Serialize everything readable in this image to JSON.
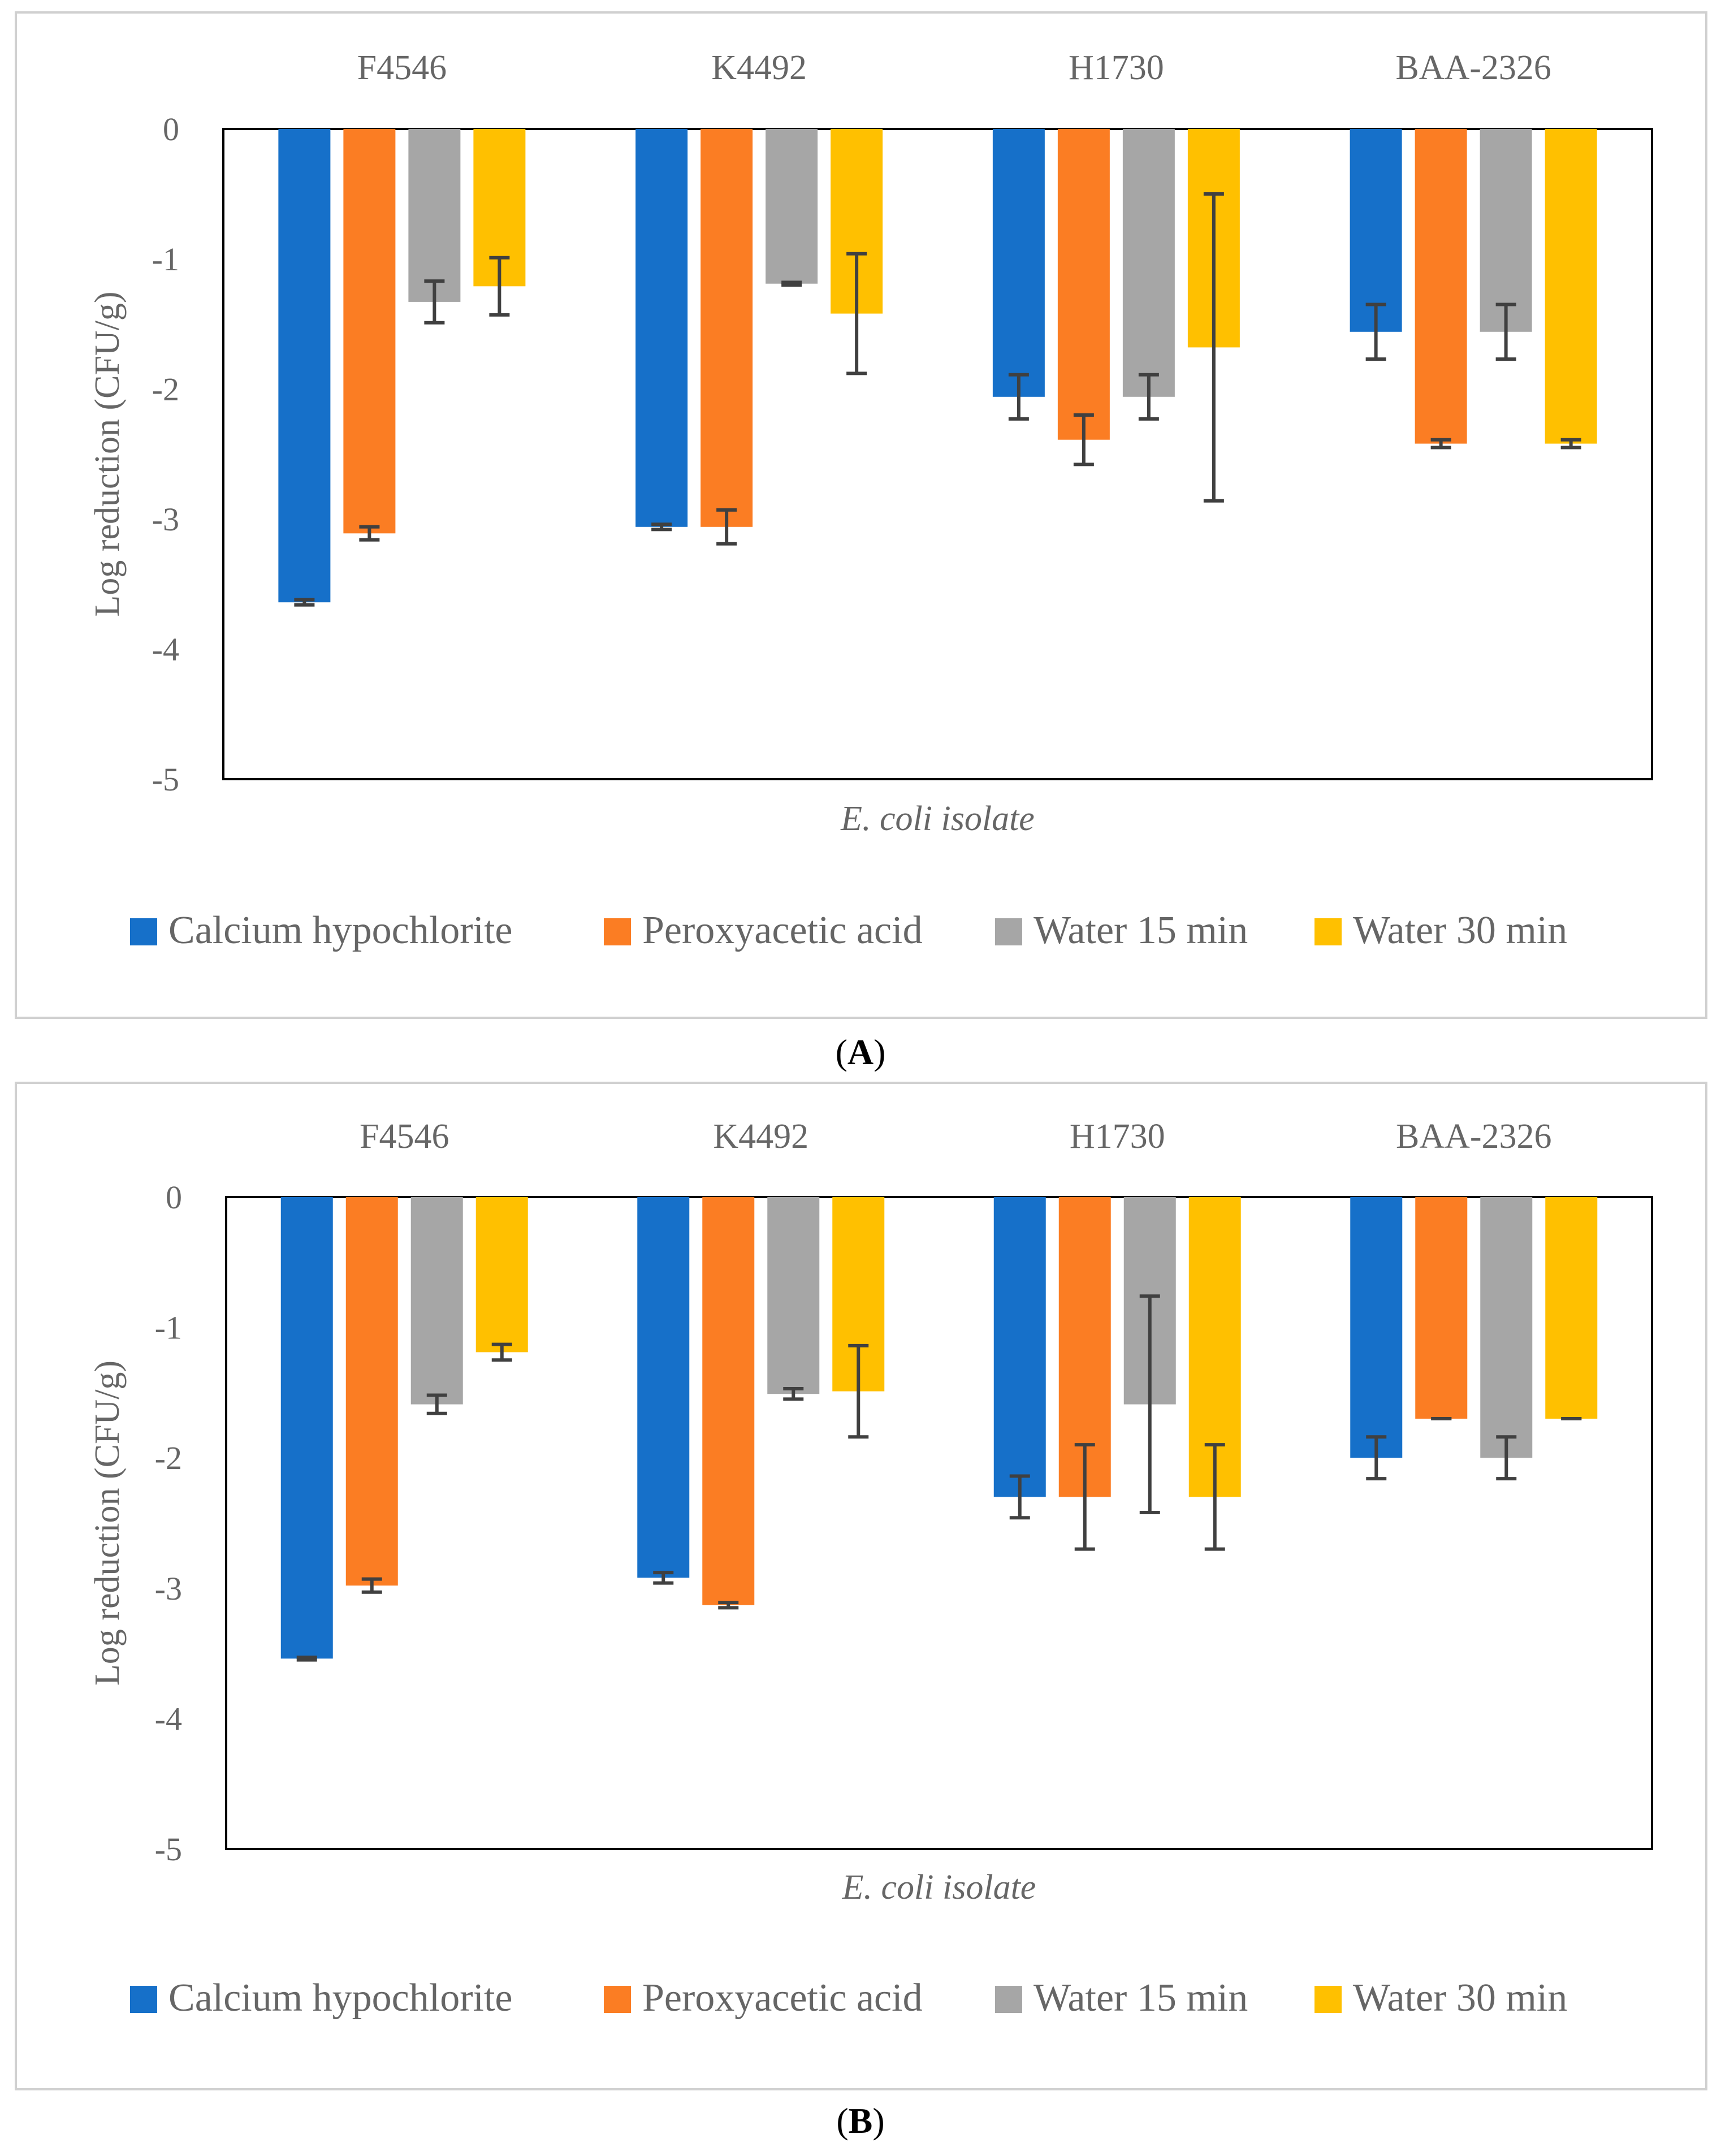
{
  "colors": {
    "series": [
      "#1670C9",
      "#FB7D23",
      "#A6A6A6",
      "#FFC000"
    ],
    "text": "#666666",
    "axis": "#000000",
    "error": "#404040",
    "border": "#D0D0D0"
  },
  "legend": [
    "Calcium hypochlorite",
    "Peroxyacetic acid",
    "Water 15 min",
    "Water 30 min"
  ],
  "captions": {
    "a_open": "(",
    "a_letter": "A",
    "a_close": ")",
    "b_open": "(",
    "b_letter": "B",
    "b_close": ")"
  },
  "chart_data": [
    {
      "type": "bar",
      "panel": "A",
      "categories": [
        "F4546",
        "K4492",
        "H1730",
        "BAA-2326"
      ],
      "xlabel": "E. coli isolate",
      "ylabel": "Log reduction (CFU/g)",
      "ylim": [
        -5,
        0
      ],
      "yticks": [
        0,
        -1,
        -2,
        -3,
        -4,
        -5
      ],
      "series": [
        {
          "name": "Calcium hypochlorite",
          "values": [
            -3.64,
            -3.06,
            -2.06,
            -1.56
          ],
          "errors": [
            0.02,
            0.02,
            0.17,
            0.21
          ]
        },
        {
          "name": "Peroxyacetic acid",
          "values": [
            -3.11,
            -3.06,
            -2.39,
            -2.42
          ],
          "errors": [
            0.05,
            0.13,
            0.19,
            0.03
          ]
        },
        {
          "name": "Water 15 min",
          "values": [
            -1.33,
            -1.19,
            -2.06,
            -1.56
          ],
          "errors": [
            0.16,
            0.01,
            0.17,
            0.21
          ]
        },
        {
          "name": "Water 30 min",
          "values": [
            -1.21,
            -1.42,
            -1.68,
            -2.42
          ],
          "errors": [
            0.22,
            0.46,
            1.18,
            0.03
          ]
        }
      ]
    },
    {
      "type": "bar",
      "panel": "B",
      "categories": [
        "F4546",
        "K4492",
        "H1730",
        "BAA-2326"
      ],
      "xlabel": "E. coli isolate",
      "ylabel": "Log reduction (CFU/g)",
      "ylim": [
        -5,
        0
      ],
      "yticks": [
        0,
        -1,
        -2,
        -3,
        -4,
        -5
      ],
      "series": [
        {
          "name": "Calcium hypochlorite",
          "values": [
            -3.54,
            -2.92,
            -2.3,
            -2.0
          ],
          "errors": [
            0.01,
            0.04,
            0.16,
            0.16
          ]
        },
        {
          "name": "Peroxyacetic acid",
          "values": [
            -2.98,
            -3.13,
            -2.3,
            -1.7
          ],
          "errors": [
            0.05,
            0.02,
            0.4,
            0.0
          ]
        },
        {
          "name": "Water 15 min",
          "values": [
            -1.59,
            -1.51,
            -1.59,
            -2.0
          ],
          "errors": [
            0.07,
            0.04,
            0.83,
            0.16
          ]
        },
        {
          "name": "Water 30 min",
          "values": [
            -1.19,
            -1.49,
            -2.3,
            -1.7
          ],
          "errors": [
            0.06,
            0.35,
            0.4,
            0.0
          ]
        }
      ]
    }
  ]
}
